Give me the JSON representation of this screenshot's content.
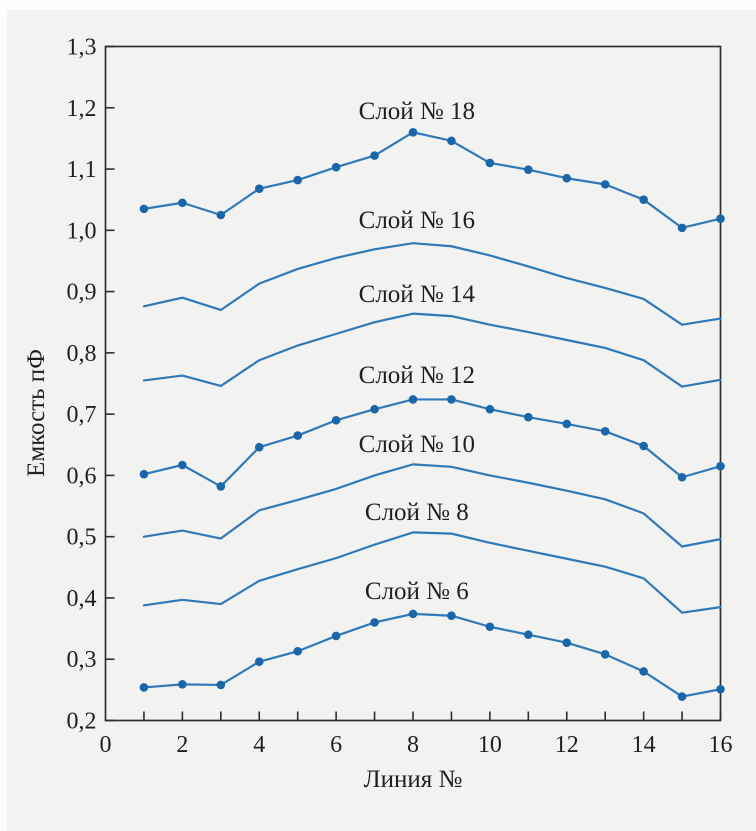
{
  "chart_data": {
    "type": "line",
    "xlabel": "Линия №",
    "ylabel": "Емкость пФ",
    "xlim": [
      0,
      16
    ],
    "ylim": [
      0.2,
      1.3
    ],
    "grid": false,
    "legend_position": "inline-annotations",
    "axis_color": "#2e2e2e",
    "background_color": "#f2f2f1",
    "line_color": "#2f79b9",
    "marker_color": "#1a66a8",
    "x": [
      1,
      2,
      3,
      4,
      5,
      6,
      7,
      8,
      9,
      10,
      11,
      12,
      13,
      14,
      15,
      16
    ],
    "xticks": {
      "values": [
        0,
        2,
        4,
        6,
        8,
        10,
        12,
        14,
        16
      ],
      "labels": [
        "0",
        "2",
        "4",
        "6",
        "8",
        "10",
        "12",
        "14",
        "16"
      ]
    },
    "xtick_marks": [
      1,
      2,
      3,
      4,
      5,
      6,
      7,
      8,
      9,
      10,
      11,
      12,
      13,
      14,
      15,
      16
    ],
    "yticks": {
      "values": [
        1.3,
        1.2,
        1.1,
        1.0,
        0.9,
        0.8,
        0.7,
        0.6,
        0.5,
        0.4,
        0.3,
        0.2
      ],
      "labels": [
        "1,3",
        "1,2",
        "1,1",
        "1,0",
        "0,9",
        "0,8",
        "0,7",
        "0,6",
        "0,5",
        "0,4",
        "0,3",
        "0,2"
      ]
    },
    "series": [
      {
        "name": "Слой № 18",
        "marker": true,
        "values": [
          1.035,
          1.045,
          1.025,
          1.068,
          1.082,
          1.103,
          1.122,
          1.16,
          1.146,
          1.11,
          1.099,
          1.085,
          1.075,
          1.05,
          1.004,
          1.019
        ]
      },
      {
        "name": "Слой № 16",
        "marker": false,
        "values": [
          0.876,
          0.89,
          0.87,
          0.913,
          0.937,
          0.955,
          0.969,
          0.979,
          0.974,
          0.959,
          0.941,
          0.922,
          0.906,
          0.888,
          0.846,
          0.856
        ]
      },
      {
        "name": "Слой № 14",
        "marker": false,
        "values": [
          0.755,
          0.763,
          0.746,
          0.788,
          0.812,
          0.831,
          0.85,
          0.864,
          0.86,
          0.846,
          0.834,
          0.821,
          0.808,
          0.788,
          0.745,
          0.756
        ]
      },
      {
        "name": "Слой № 12",
        "marker": true,
        "values": [
          0.602,
          0.617,
          0.582,
          0.646,
          0.665,
          0.69,
          0.708,
          0.724,
          0.724,
          0.708,
          0.695,
          0.684,
          0.672,
          0.648,
          0.597,
          0.615
        ]
      },
      {
        "name": "Слой № 10",
        "marker": false,
        "values": [
          0.5,
          0.51,
          0.497,
          0.543,
          0.56,
          0.578,
          0.6,
          0.618,
          0.614,
          0.6,
          0.588,
          0.575,
          0.561,
          0.538,
          0.484,
          0.496
        ]
      },
      {
        "name": "Слой № 8",
        "marker": false,
        "values": [
          0.388,
          0.397,
          0.39,
          0.428,
          0.447,
          0.465,
          0.487,
          0.507,
          0.505,
          0.49,
          0.477,
          0.464,
          0.451,
          0.432,
          0.376,
          0.385
        ]
      },
      {
        "name": "Слой № 6",
        "marker": true,
        "values": [
          0.254,
          0.259,
          0.258,
          0.296,
          0.313,
          0.338,
          0.36,
          0.374,
          0.371,
          0.353,
          0.34,
          0.327,
          0.308,
          0.28,
          0.239,
          0.251
        ]
      }
    ],
    "annotations": [
      {
        "text": "Слой № 18",
        "x": 8.1,
        "y": 1.195
      },
      {
        "text": "Слой № 16",
        "x": 8.1,
        "y": 1.017
      },
      {
        "text": "Слой № 14",
        "x": 8.1,
        "y": 0.896
      },
      {
        "text": "Слой № 12",
        "x": 8.1,
        "y": 0.764
      },
      {
        "text": "Слой № 10",
        "x": 8.1,
        "y": 0.651
      },
      {
        "text": "Слой № 8",
        "x": 8.1,
        "y": 0.54
      },
      {
        "text": "Слой № 6",
        "x": 8.1,
        "y": 0.411
      }
    ]
  }
}
